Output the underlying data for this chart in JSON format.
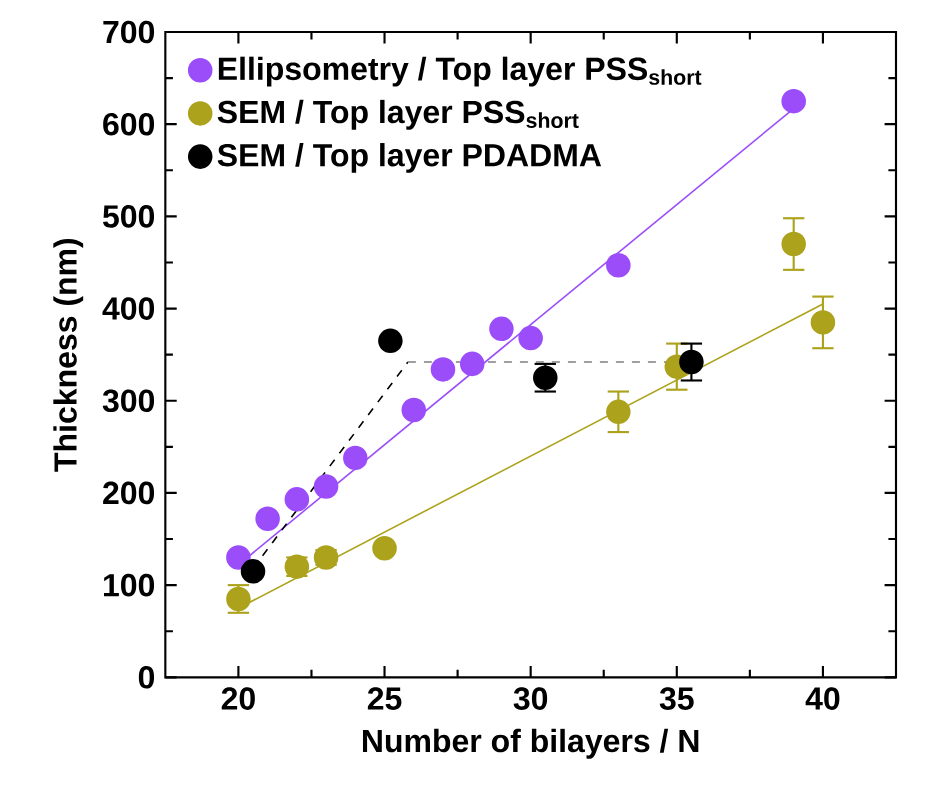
{
  "chart_data": {
    "type": "scatter",
    "xlabel": "Number of bilayers / N",
    "ylabel": "Thickness (nm)",
    "xlim": [
      17.5,
      42.5
    ],
    "ylim": [
      0,
      700
    ],
    "xticks": [
      20,
      25,
      30,
      35,
      40
    ],
    "yticks": [
      0,
      100,
      200,
      300,
      400,
      500,
      600,
      700
    ],
    "grid": false,
    "legend": "top left",
    "marker": "circle",
    "series": [
      {
        "name": "Ellipsometry / Top layer PSS$_{short}$",
        "color": "#9b4dfa",
        "x": [
          20,
          21,
          22,
          23,
          24,
          26,
          27,
          28,
          29,
          30,
          33,
          39
        ],
        "values": [
          130,
          172,
          193,
          207,
          238,
          290,
          334,
          340,
          378,
          368,
          447,
          625
        ]
      },
      {
        "name": "SEM / Top layer PSS$_{short}$",
        "color": "#aca21c",
        "x": [
          20,
          22,
          23,
          25,
          33,
          35,
          39,
          40
        ],
        "values": [
          85,
          120,
          130,
          140,
          288,
          337,
          470,
          385
        ],
        "errors": [
          15,
          10,
          8,
          null,
          22,
          25,
          28,
          28
        ]
      },
      {
        "name": "SEM / Top layer PDADMA",
        "color": "#000000",
        "x": [
          20.5,
          25.2,
          30.5,
          35.5
        ],
        "values": [
          115,
          365,
          325,
          342
        ],
        "errors": [
          null,
          null,
          15,
          20
        ]
      },
      {
        "type": "line",
        "marker": "none",
        "color": "#9b4dfa",
        "x": [
          20,
          39
        ],
        "values": [
          122,
          617
        ]
      },
      {
        "type": "line",
        "marker": "none",
        "color": "#aca21c",
        "x": [
          20,
          40
        ],
        "values": [
          75,
          405
        ]
      },
      {
        "type": "line",
        "marker": "none",
        "line_style": "dashed",
        "color": "#000000",
        "x": [
          20.5,
          25.8
        ],
        "values": [
          118,
          342
        ]
      },
      {
        "type": "line",
        "marker": "none",
        "line_style": "dashed",
        "color": "#808080",
        "x": [
          25.8,
          35.5
        ],
        "values": [
          342,
          342
        ]
      }
    ]
  }
}
